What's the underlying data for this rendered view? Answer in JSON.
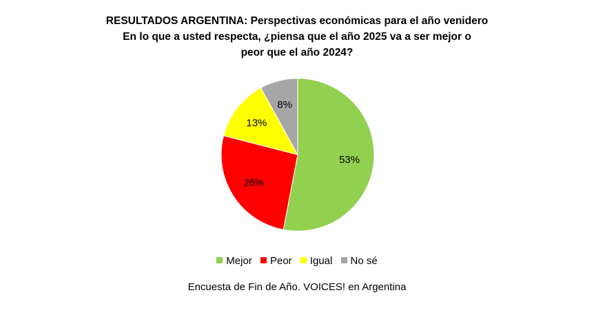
{
  "chart_data": {
    "type": "pie",
    "title_lines": [
      "RESULTADOS ARGENTINA: Perspectivas económicas para el año venidero",
      "En lo que a usted respecta, ¿piensa que el año 2025 va a ser mejor o",
      "peor que el año 2024?"
    ],
    "slices": [
      {
        "name": "Mejor",
        "value": 53,
        "label": "53%",
        "color": "#92D050"
      },
      {
        "name": "Peor",
        "value": 26,
        "label": "26%",
        "color": "#FF0000"
      },
      {
        "name": "Igual",
        "value": 13,
        "label": "13%",
        "color": "#FFFF00"
      },
      {
        "name": "No sé",
        "value": 8,
        "label": "8%",
        "color": "#A6A6A6"
      }
    ],
    "legend_position": "bottom",
    "caption": "Encuesta de Fin de Año. VOICES! en Argentina"
  }
}
